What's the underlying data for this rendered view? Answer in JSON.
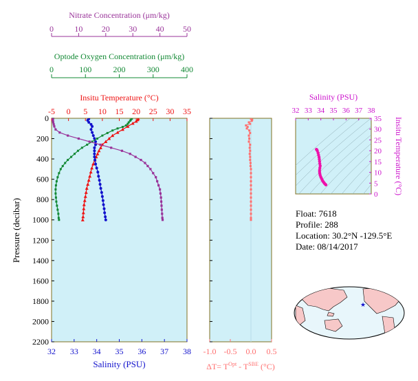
{
  "float_info": {
    "float": "Float:  7618",
    "profile": "Profile:  288",
    "location": "Location:  30.2°N  -129.5°E",
    "date": "Date:  08/14/2017"
  },
  "colors": {
    "temperature": "#ee1111",
    "salinity": "#1111cc",
    "oxygen": "#118833",
    "nitrate": "#993399",
    "dt": "#ff6f6f",
    "ts": "#ee11aa",
    "panel_bg": "#d0f0f8",
    "frame": "#807020"
  },
  "chart_data": [
    {
      "type": "line",
      "name": "profile-panel",
      "ylabel": "Pressure (decibar)",
      "yticks": [
        0,
        200,
        400,
        600,
        800,
        1000,
        1200,
        1400,
        1600,
        1800,
        2000,
        2200
      ],
      "ylim": [
        0,
        2200
      ],
      "axes": {
        "salinity": {
          "label": "Salinity (PSU)",
          "ticks": [
            "32",
            "33",
            "34",
            "35",
            "36",
            "37",
            "38"
          ],
          "range": [
            32,
            38
          ]
        },
        "temperature": {
          "label": "Insitu Temperature (°C)",
          "ticks": [
            "-5",
            "0",
            "5",
            "10",
            "15",
            "20",
            "25",
            "30",
            "35"
          ],
          "range": [
            -5,
            35
          ]
        },
        "oxygen": {
          "label": "Optode Oxygen Concentration (μm/kg)",
          "ticks": [
            "0",
            "100",
            "200",
            "300",
            "400"
          ],
          "range": [
            0,
            400
          ]
        },
        "nitrate": {
          "label": "Nitrate Concentration (μm/kg)",
          "ticks": [
            "0",
            "10",
            "20",
            "30",
            "40",
            "50"
          ],
          "range": [
            0,
            50
          ]
        }
      },
      "series": [
        {
          "axis": "temperature",
          "color": "#ee1111",
          "points": [
            [
              20.6,
              5
            ],
            [
              20.4,
              15
            ],
            [
              20.0,
              30
            ],
            [
              19.0,
              50
            ],
            [
              17.5,
              80
            ],
            [
              16.0,
              110
            ],
            [
              14.5,
              140
            ],
            [
              13.0,
              170
            ],
            [
              12.0,
              200
            ],
            [
              11.0,
              230
            ],
            [
              10.0,
              260
            ],
            [
              9.5,
              290
            ],
            [
              9.0,
              320
            ],
            [
              8.6,
              350
            ],
            [
              8.2,
              380
            ],
            [
              7.8,
              410
            ],
            [
              7.3,
              450
            ],
            [
              6.9,
              490
            ],
            [
              6.6,
              530
            ],
            [
              6.3,
              570
            ],
            [
              6.0,
              610
            ],
            [
              5.7,
              650
            ],
            [
              5.4,
              690
            ],
            [
              5.2,
              730
            ],
            [
              5.0,
              770
            ],
            [
              4.8,
              810
            ],
            [
              4.6,
              850
            ],
            [
              4.5,
              890
            ],
            [
              4.4,
              930
            ],
            [
              4.3,
              970
            ],
            [
              4.2,
              1000
            ]
          ]
        },
        {
          "axis": "salinity",
          "color": "#1111cc",
          "points": [
            [
              33.65,
              5
            ],
            [
              33.6,
              20
            ],
            [
              33.65,
              40
            ],
            [
              33.75,
              60
            ],
            [
              33.8,
              80
            ],
            [
              33.75,
              110
            ],
            [
              33.8,
              140
            ],
            [
              33.85,
              170
            ],
            [
              33.9,
              200
            ],
            [
              33.95,
              230
            ],
            [
              33.95,
              260
            ],
            [
              33.9,
              290
            ],
            [
              33.9,
              320
            ],
            [
              33.9,
              350
            ],
            [
              33.9,
              380
            ],
            [
              33.92,
              410
            ],
            [
              33.95,
              450
            ],
            [
              34.0,
              490
            ],
            [
              34.05,
              530
            ],
            [
              34.08,
              570
            ],
            [
              34.12,
              610
            ],
            [
              34.15,
              650
            ],
            [
              34.18,
              690
            ],
            [
              34.22,
              730
            ],
            [
              34.25,
              770
            ],
            [
              34.28,
              810
            ],
            [
              34.3,
              850
            ],
            [
              34.33,
              890
            ],
            [
              34.35,
              930
            ],
            [
              34.38,
              970
            ],
            [
              34.4,
              1000
            ]
          ]
        },
        {
          "axis": "oxygen",
          "color": "#118833",
          "points": [
            [
              237,
              5
            ],
            [
              234,
              15
            ],
            [
              232,
              25
            ],
            [
              228,
              40
            ],
            [
              225,
              55
            ],
            [
              220,
              70
            ],
            [
              210,
              85
            ],
            [
              195,
              100
            ],
            [
              180,
              120
            ],
            [
              165,
              145
            ],
            [
              150,
              170
            ],
            [
              135,
              200
            ],
            [
              120,
              230
            ],
            [
              105,
              260
            ],
            [
              90,
              290
            ],
            [
              78,
              320
            ],
            [
              68,
              350
            ],
            [
              58,
              380
            ],
            [
              48,
              410
            ],
            [
              40,
              440
            ],
            [
              33,
              470
            ],
            [
              27,
              500
            ],
            [
              22,
              540
            ],
            [
              18,
              580
            ],
            [
              15,
              620
            ],
            [
              13,
              660
            ],
            [
              12,
              700
            ],
            [
              12,
              740
            ],
            [
              13,
              780
            ],
            [
              14,
              820
            ],
            [
              16,
              860
            ],
            [
              18,
              900
            ],
            [
              20,
              940
            ],
            [
              21,
              980
            ],
            [
              22,
              1000
            ]
          ]
        },
        {
          "axis": "nitrate",
          "color": "#993399",
          "points": [
            [
              0.5,
              5
            ],
            [
              0.5,
              15
            ],
            [
              0.5,
              25
            ],
            [
              0.6,
              40
            ],
            [
              0.8,
              60
            ],
            [
              1.0,
              80
            ],
            [
              1.5,
              110
            ],
            [
              3,
              140
            ],
            [
              6,
              170
            ],
            [
              10,
              200
            ],
            [
              14,
              230
            ],
            [
              18,
              260
            ],
            [
              22,
              290
            ],
            [
              26,
              320
            ],
            [
              29,
              350
            ],
            [
              31,
              380
            ],
            [
              33,
              410
            ],
            [
              34.5,
              440
            ],
            [
              35.5,
              470
            ],
            [
              36.5,
              500
            ],
            [
              37.5,
              540
            ],
            [
              38.5,
              580
            ],
            [
              39,
              620
            ],
            [
              39.5,
              660
            ],
            [
              40,
              700
            ],
            [
              40.2,
              740
            ],
            [
              40.4,
              780
            ],
            [
              40.5,
              820
            ],
            [
              40.6,
              860
            ],
            [
              40.7,
              900
            ],
            [
              40.8,
              940
            ],
            [
              40.9,
              980
            ],
            [
              41,
              1000
            ]
          ]
        }
      ]
    },
    {
      "type": "line",
      "name": "delta-t-panel",
      "xlabel": "ΔT= T",
      "xlabel_sup1": "Opt",
      "xlabel_mid": " - T",
      "xlabel_sup2": "SBE",
      "xlabel_unit": " (°C)",
      "xticks": [
        "-1.0",
        "-0.5",
        "0.0",
        "0.5"
      ],
      "xlim": [
        -1.0,
        0.5
      ],
      "ylim": [
        0,
        2200
      ],
      "series": [
        {
          "color": "#ff6f6f",
          "points": [
            [
              0.0,
              5
            ],
            [
              0.03,
              15
            ],
            [
              0.02,
              25
            ],
            [
              -0.05,
              40
            ],
            [
              -0.02,
              55
            ],
            [
              -0.12,
              70
            ],
            [
              -0.08,
              85
            ],
            [
              -0.1,
              100
            ],
            [
              -0.04,
              120
            ],
            [
              -0.02,
              145
            ],
            [
              -0.05,
              170
            ],
            [
              -0.04,
              200
            ],
            [
              -0.05,
              230
            ],
            [
              -0.02,
              260
            ],
            [
              -0.03,
              290
            ],
            [
              -0.02,
              320
            ],
            [
              -0.03,
              350
            ],
            [
              -0.02,
              380
            ],
            [
              -0.02,
              410
            ],
            [
              -0.01,
              440
            ],
            [
              -0.01,
              470
            ],
            [
              0.0,
              500
            ],
            [
              0.0,
              540
            ],
            [
              0.0,
              580
            ],
            [
              0.0,
              620
            ],
            [
              0.0,
              660
            ],
            [
              0.0,
              700
            ],
            [
              0.0,
              740
            ],
            [
              0.0,
              780
            ],
            [
              0.0,
              820
            ],
            [
              0.0,
              860
            ],
            [
              0.0,
              900
            ],
            [
              0.0,
              940
            ],
            [
              0.0,
              980
            ],
            [
              0.0,
              1000
            ]
          ]
        }
      ]
    },
    {
      "type": "scatter",
      "name": "ts-diagram",
      "xlabel": "Salinity (PSU)",
      "xticks": [
        "32",
        "33",
        "34",
        "35",
        "36",
        "37",
        "38"
      ],
      "xlim": [
        32,
        38
      ],
      "ylabel": "Insitu Temperature (°C)",
      "yticks": [
        "0",
        "5",
        "10",
        "15",
        "20",
        "25",
        "30",
        "35"
      ],
      "ylim": [
        0,
        35
      ],
      "series": [
        {
          "color": "#ee11aa",
          "points": [
            [
              34.4,
              4.2
            ],
            [
              34.35,
              4.5
            ],
            [
              34.3,
              4.8
            ],
            [
              34.25,
              5.2
            ],
            [
              34.2,
              5.6
            ],
            [
              34.15,
              6.0
            ],
            [
              34.1,
              6.6
            ],
            [
              34.05,
              7.2
            ],
            [
              34.0,
              7.8
            ],
            [
              33.95,
              8.6
            ],
            [
              33.92,
              9.4
            ],
            [
              33.9,
              10.2
            ],
            [
              33.9,
              11.0
            ],
            [
              33.92,
              12.0
            ],
            [
              33.95,
              13.0
            ],
            [
              33.92,
              14.0
            ],
            [
              33.9,
              15.0
            ],
            [
              33.88,
              16.0
            ],
            [
              33.86,
              17.0
            ],
            [
              33.82,
              18.0
            ],
            [
              33.78,
              19.0
            ],
            [
              33.72,
              20.0
            ],
            [
              33.68,
              20.5
            ],
            [
              33.65,
              20.6
            ]
          ]
        }
      ]
    }
  ]
}
